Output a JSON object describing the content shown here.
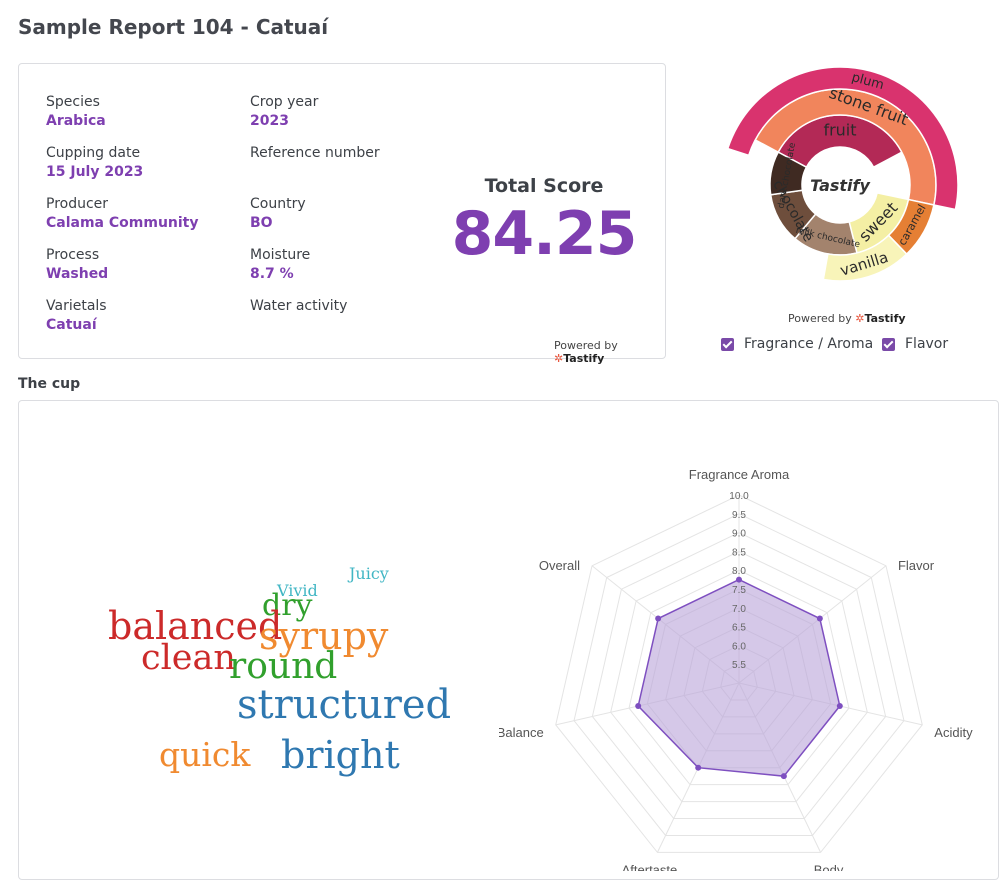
{
  "page": {
    "title": "Sample Report 104 - Catuaí"
  },
  "info": {
    "species": {
      "label": "Species",
      "value": "Arabica"
    },
    "crop_year": {
      "label": "Crop year",
      "value": "2023"
    },
    "cupping_date": {
      "label": "Cupping date",
      "value": "15 July 2023"
    },
    "reference_number": {
      "label": "Reference number",
      "value": ""
    },
    "producer": {
      "label": "Producer",
      "value": "Calama Community"
    },
    "country": {
      "label": "Country",
      "value": "BO"
    },
    "process": {
      "label": "Process",
      "value": "Washed"
    },
    "moisture": {
      "label": "Moisture",
      "value": "8.7 %"
    },
    "varietals": {
      "label": "Varietals",
      "value": "Catuaí"
    },
    "water_activity": {
      "label": "Water activity",
      "value": ""
    }
  },
  "score": {
    "title": "Total Score",
    "value": "84.25"
  },
  "powered": {
    "text": "Powered by",
    "brand": "Tastify"
  },
  "wheel": {
    "center_label": "Tastify",
    "rings": {
      "inner": [
        {
          "label": "dark chocolate",
          "color": "#3f2a22"
        },
        {
          "label": "chocolate",
          "color": "#6e4e3c"
        },
        {
          "label": "milk chocolate",
          "color": "#a3836d"
        },
        {
          "label": "sweet",
          "color": "#f4efa4"
        },
        {
          "label": "fruit",
          "color": "#b32956"
        }
      ],
      "middle": [
        {
          "label": "vanilla",
          "color": "#f8f4b9"
        },
        {
          "label": "caramel",
          "color": "#e57f34"
        },
        {
          "label": "stone fruit",
          "color": "#f1855c"
        }
      ],
      "outer": [
        {
          "label": "plum",
          "color": "#d9336e"
        }
      ]
    }
  },
  "legend": [
    {
      "label": "Fragrance / Aroma",
      "checked": true
    },
    {
      "label": "Flavor",
      "checked": true
    }
  ],
  "cup": {
    "title": "The cup",
    "words": [
      {
        "text": "Juicy",
        "color": "#41b6c4"
      },
      {
        "text": "Vivid",
        "color": "#41b6c4"
      },
      {
        "text": "dry",
        "color": "#31a02d"
      },
      {
        "text": "balanced",
        "color": "#cc2a2a"
      },
      {
        "text": "syrupy",
        "color": "#f08a30"
      },
      {
        "text": "clean",
        "color": "#cc2a2a"
      },
      {
        "text": "round",
        "color": "#31a02d"
      },
      {
        "text": "structured",
        "color": "#2f78b0"
      },
      {
        "text": "quick",
        "color": "#f08a30"
      },
      {
        "text": "bright",
        "color": "#2f78b0"
      }
    ]
  },
  "chart_data": {
    "type": "radar",
    "axes": [
      "Fragrance Aroma",
      "Flavor",
      "Acidity",
      "Body",
      "Aftertaste",
      "Balance",
      "Overall"
    ],
    "values": [
      7.75,
      7.75,
      7.75,
      7.75,
      7.5,
      7.75,
      7.75
    ],
    "rlim": [
      5.0,
      10.0
    ],
    "ticks": [
      "5.5",
      "6.0",
      "6.5",
      "7.0",
      "7.5",
      "8.0",
      "8.5",
      "9.0",
      "9.5",
      "10.0"
    ],
    "grid": true,
    "fill_color": "#b9a3d9",
    "line_color": "#7e4fc0"
  }
}
